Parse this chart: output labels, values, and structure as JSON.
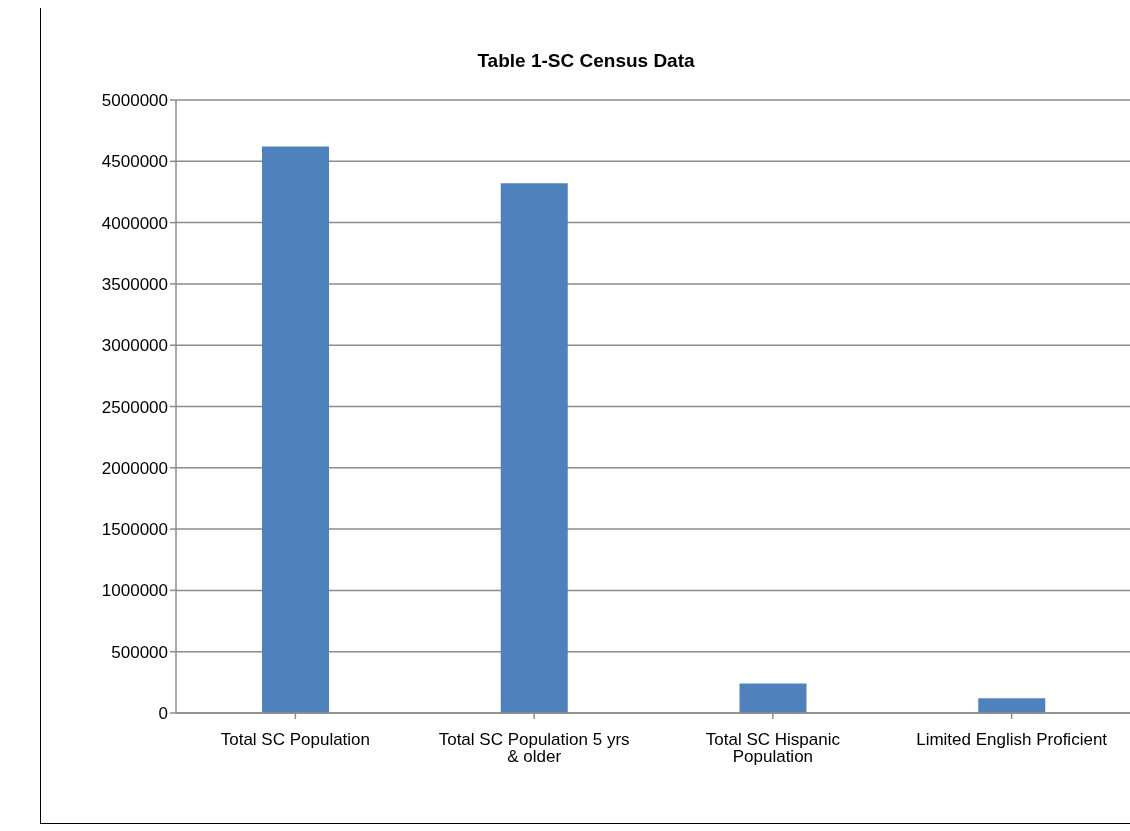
{
  "chart_data": {
    "type": "bar",
    "title": "Table 1-SC Census Data",
    "categories": [
      "Total SC Population",
      "Total SC Population 5 yrs & older",
      "Total SC Hispanic Population",
      "Limited English Proficient"
    ],
    "values": [
      4620000,
      4320000,
      240000,
      120000
    ],
    "color": "#4f81bd",
    "ylim": [
      0,
      5000000
    ],
    "yticks": [
      0,
      500000,
      1000000,
      1500000,
      2000000,
      2500000,
      3000000,
      3500000,
      4000000,
      4500000,
      5000000
    ],
    "grid": "y",
    "legend": false
  }
}
